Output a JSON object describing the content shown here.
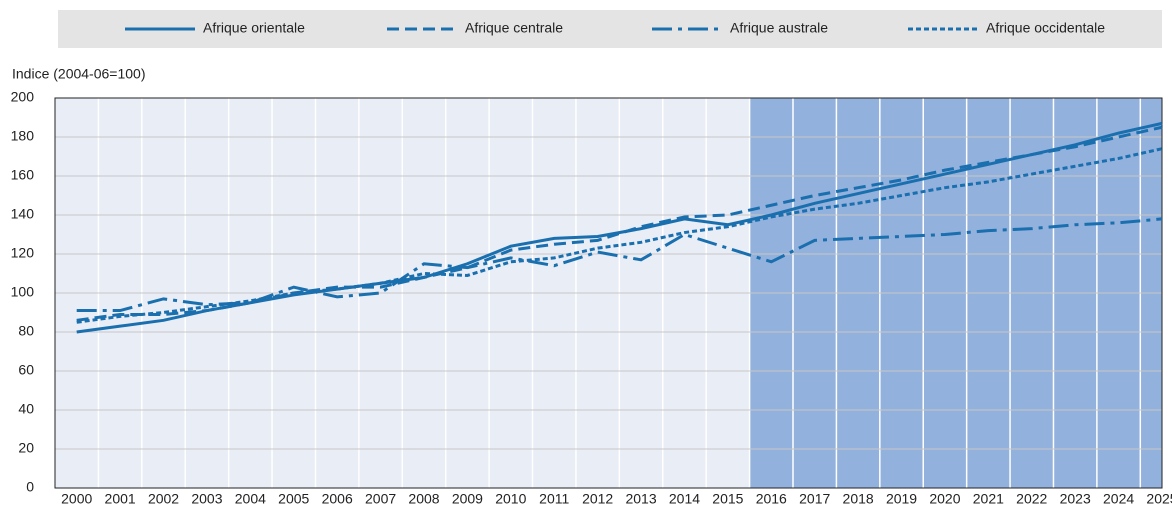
{
  "chart_data": {
    "type": "line",
    "y_axis_label": "Indice (2004-06=100)",
    "categories": [
      "2000",
      "2001",
      "2002",
      "2003",
      "2004",
      "2005",
      "2006",
      "2007",
      "2008",
      "2009",
      "2010",
      "2011",
      "2012",
      "2013",
      "2014",
      "2015",
      "2016",
      "2017",
      "2018",
      "2019",
      "2020",
      "2021",
      "2022",
      "2023",
      "2024",
      "2025"
    ],
    "series": [
      {
        "name": "Afrique orientale",
        "color": "#1a6faf",
        "dash": "solid",
        "values": [
          80,
          83,
          86,
          91,
          95,
          99,
          102,
          105,
          108,
          115,
          124,
          128,
          129,
          133,
          138,
          135,
          140,
          146,
          151,
          156,
          161,
          166,
          171,
          176,
          182,
          187
        ]
      },
      {
        "name": "Afrique centrale",
        "color": "#1a6faf",
        "dash": "dashed",
        "values": [
          86,
          89,
          89,
          91,
          95,
          100,
          103,
          103,
          108,
          113,
          122,
          125,
          127,
          134,
          139,
          140,
          145,
          150,
          154,
          158,
          163,
          167,
          171,
          175,
          180,
          185
        ]
      },
      {
        "name": "Afrique australe",
        "color": "#1a6faf",
        "dash": "dashdot",
        "values": [
          91,
          91,
          97,
          94,
          95,
          103,
          98,
          100,
          115,
          113,
          118,
          114,
          121,
          117,
          130,
          123,
          116,
          127,
          128,
          129,
          130,
          132,
          133,
          135,
          136,
          138
        ]
      },
      {
        "name": "Afrique occidentale",
        "color": "#1a6faf",
        "dash": "dotted",
        "values": [
          85,
          88,
          90,
          93,
          96,
          100,
          102,
          105,
          110,
          109,
          116,
          118,
          123,
          126,
          131,
          134,
          139,
          143,
          146,
          150,
          154,
          157,
          161,
          165,
          169,
          174
        ]
      }
    ],
    "shade_from": "2016",
    "ylim": [
      0,
      200
    ],
    "yticks": [
      0,
      20,
      40,
      60,
      80,
      100,
      120,
      140,
      160,
      180,
      200
    ],
    "grid": true
  }
}
